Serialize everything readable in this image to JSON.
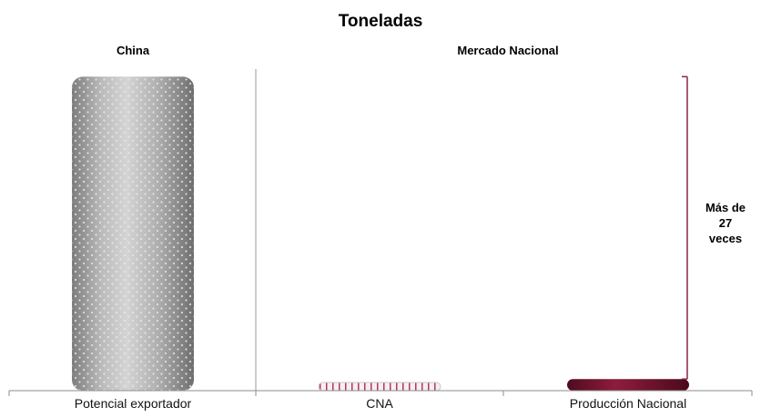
{
  "chart_data": {
    "type": "bar",
    "title": "Toneladas",
    "xlabel": "",
    "ylabel": "",
    "grid": false,
    "legend": "none",
    "group_labels": [
      "China",
      "Mercado Nacional"
    ],
    "categories": [
      "Potencial exportador",
      "CNA",
      "Producción Nacional"
    ],
    "values": [
      27,
      0.35,
      1
    ],
    "ylim": [
      0,
      27.5
    ],
    "bracket_annotation": [
      "Más de",
      "27",
      "veces"
    ],
    "colors": {
      "potencial_exportador": "#a6a6a6",
      "cna": "#b03a5b",
      "produccion_nacional": "#7a1531",
      "bracket": "#8b2448"
    }
  }
}
